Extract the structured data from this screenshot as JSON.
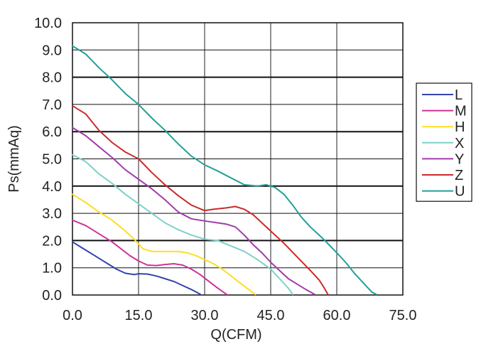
{
  "chart_data": {
    "type": "line",
    "title": "",
    "xlabel": "Q(CFM)",
    "ylabel": "Ps(mmAq)",
    "xlim": [
      0,
      75
    ],
    "ylim": [
      0,
      10
    ],
    "grid": true,
    "legend_position": "right",
    "x_ticks": [
      "0.0",
      "15.0",
      "30.0",
      "45.0",
      "60.0",
      "75.0"
    ],
    "y_ticks": [
      "0.0",
      "1.0",
      "2.0",
      "3.0",
      "4.0",
      "5.0",
      "6.0",
      "7.0",
      "8.0",
      "9.0",
      "10.0"
    ],
    "series": [
      {
        "name": "L",
        "color": "#3344aa",
        "points": [
          [
            0,
            1.95
          ],
          [
            2,
            1.75
          ],
          [
            4,
            1.55
          ],
          [
            6,
            1.35
          ],
          [
            8,
            1.15
          ],
          [
            10,
            0.95
          ],
          [
            12,
            0.8
          ],
          [
            14,
            0.75
          ],
          [
            15,
            0.78
          ],
          [
            17,
            0.77
          ],
          [
            19,
            0.7
          ],
          [
            21,
            0.6
          ],
          [
            23,
            0.5
          ],
          [
            25,
            0.35
          ],
          [
            27,
            0.2
          ],
          [
            29,
            0.03
          ]
        ]
      },
      {
        "name": "M",
        "color": "#cc3399",
        "points": [
          [
            0,
            2.75
          ],
          [
            3,
            2.55
          ],
          [
            6,
            2.25
          ],
          [
            9,
            1.95
          ],
          [
            11,
            1.7
          ],
          [
            13,
            1.45
          ],
          [
            15,
            1.25
          ],
          [
            17,
            1.1
          ],
          [
            19,
            1.08
          ],
          [
            21,
            1.12
          ],
          [
            23,
            1.15
          ],
          [
            25,
            1.1
          ],
          [
            27,
            0.95
          ],
          [
            29,
            0.75
          ],
          [
            31,
            0.5
          ],
          [
            33,
            0.25
          ],
          [
            35,
            0.02
          ]
        ]
      },
      {
        "name": "H",
        "color": "#ffdd22",
        "points": [
          [
            0,
            3.7
          ],
          [
            3,
            3.4
          ],
          [
            6,
            3.05
          ],
          [
            9,
            2.75
          ],
          [
            12,
            2.35
          ],
          [
            14,
            2.05
          ],
          [
            16,
            1.7
          ],
          [
            18,
            1.6
          ],
          [
            21,
            1.6
          ],
          [
            24,
            1.6
          ],
          [
            26,
            1.55
          ],
          [
            28,
            1.45
          ],
          [
            30,
            1.3
          ],
          [
            32,
            1.15
          ],
          [
            34,
            0.95
          ],
          [
            36,
            0.7
          ],
          [
            38,
            0.45
          ],
          [
            40,
            0.2
          ],
          [
            41.5,
            0.02
          ]
        ]
      },
      {
        "name": "X",
        "color": "#7fd0c8",
        "points": [
          [
            0,
            5.15
          ],
          [
            3,
            4.9
          ],
          [
            6,
            4.45
          ],
          [
            9,
            4.1
          ],
          [
            12,
            3.7
          ],
          [
            15,
            3.35
          ],
          [
            18,
            3.0
          ],
          [
            21,
            2.65
          ],
          [
            24,
            2.4
          ],
          [
            27,
            2.2
          ],
          [
            30,
            2.05
          ],
          [
            33,
            2.0
          ],
          [
            36,
            1.8
          ],
          [
            39,
            1.6
          ],
          [
            42,
            1.3
          ],
          [
            45,
            0.95
          ],
          [
            47,
            0.6
          ],
          [
            49,
            0.25
          ],
          [
            50,
            0.02
          ]
        ]
      },
      {
        "name": "Y",
        "color": "#a03caa",
        "points": [
          [
            0,
            6.15
          ],
          [
            3,
            5.85
          ],
          [
            6,
            5.45
          ],
          [
            9,
            5.05
          ],
          [
            12,
            4.6
          ],
          [
            15,
            4.25
          ],
          [
            18,
            3.9
          ],
          [
            21,
            3.5
          ],
          [
            24,
            3.05
          ],
          [
            27,
            2.8
          ],
          [
            30,
            2.72
          ],
          [
            33,
            2.65
          ],
          [
            35,
            2.6
          ],
          [
            37,
            2.5
          ],
          [
            39,
            2.2
          ],
          [
            41,
            1.85
          ],
          [
            43,
            1.55
          ],
          [
            45,
            1.2
          ],
          [
            47,
            0.9
          ],
          [
            49,
            0.6
          ],
          [
            51,
            0.4
          ],
          [
            53,
            0.2
          ],
          [
            55,
            0.02
          ]
        ]
      },
      {
        "name": "Z",
        "color": "#cc2a2a",
        "points": [
          [
            0,
            6.95
          ],
          [
            3,
            6.65
          ],
          [
            6,
            6.05
          ],
          [
            9,
            5.6
          ],
          [
            12,
            5.25
          ],
          [
            15,
            5.0
          ],
          [
            18,
            4.5
          ],
          [
            21,
            4.05
          ],
          [
            24,
            3.65
          ],
          [
            27,
            3.3
          ],
          [
            30,
            3.1
          ],
          [
            32,
            3.15
          ],
          [
            35,
            3.2
          ],
          [
            37,
            3.25
          ],
          [
            39,
            3.15
          ],
          [
            41,
            2.95
          ],
          [
            43,
            2.65
          ],
          [
            45,
            2.35
          ],
          [
            48,
            1.9
          ],
          [
            51,
            1.4
          ],
          [
            54,
            0.9
          ],
          [
            56,
            0.55
          ],
          [
            57,
            0.3
          ],
          [
            58,
            0.02
          ]
        ]
      },
      {
        "name": "U",
        "color": "#22a098",
        "points": [
          [
            0,
            9.15
          ],
          [
            3,
            8.85
          ],
          [
            6,
            8.35
          ],
          [
            9,
            7.9
          ],
          [
            12,
            7.4
          ],
          [
            15,
            7.0
          ],
          [
            18,
            6.5
          ],
          [
            21,
            6.05
          ],
          [
            24,
            5.55
          ],
          [
            27,
            5.1
          ],
          [
            30,
            4.78
          ],
          [
            33,
            4.55
          ],
          [
            36,
            4.3
          ],
          [
            39,
            4.05
          ],
          [
            42,
            4.0
          ],
          [
            44,
            4.05
          ],
          [
            46,
            3.95
          ],
          [
            48,
            3.7
          ],
          [
            50,
            3.3
          ],
          [
            52,
            2.85
          ],
          [
            54,
            2.5
          ],
          [
            57,
            2.05
          ],
          [
            60,
            1.55
          ],
          [
            62,
            1.2
          ],
          [
            64,
            0.8
          ],
          [
            66,
            0.45
          ],
          [
            68,
            0.1
          ],
          [
            69,
            0.02
          ]
        ]
      }
    ]
  }
}
